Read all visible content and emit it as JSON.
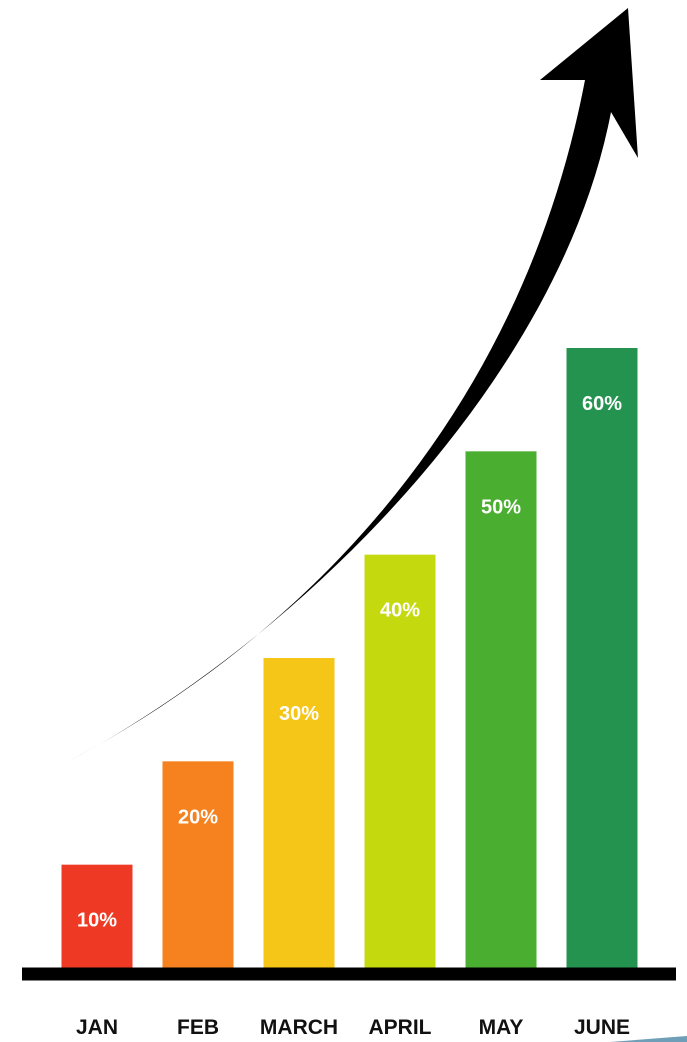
{
  "chart_data": {
    "type": "bar",
    "title": "",
    "xlabel": "",
    "ylabel": "",
    "categories": [
      "JAN",
      "FEB",
      "MARCH",
      "APRIL",
      "MAY",
      "JUNE"
    ],
    "values": [
      10,
      20,
      30,
      40,
      50,
      60
    ],
    "data_labels": [
      "10%",
      "20%",
      "30%",
      "40%",
      "50%",
      "60%"
    ],
    "ylim": [
      0,
      60
    ],
    "grid": false,
    "legend": "none",
    "colors": [
      "#ee3a24",
      "#f5821f",
      "#f5c518",
      "#c5d90f",
      "#4aae30",
      "#249350"
    ],
    "axis_color": "#000000",
    "trend_arrow": {
      "color": "#000000",
      "direction": "up-right"
    }
  }
}
